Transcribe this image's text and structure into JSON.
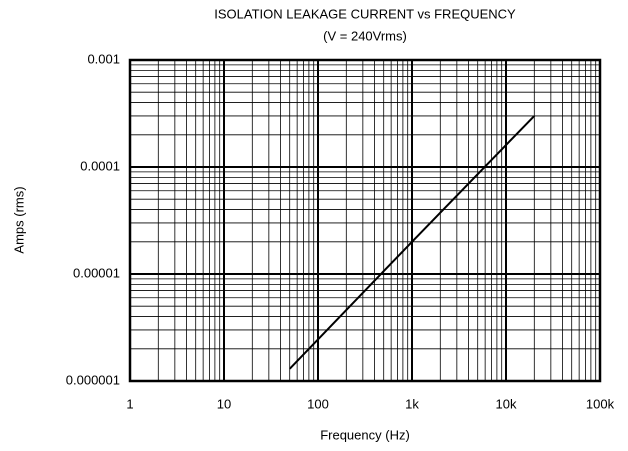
{
  "chart_data": {
    "type": "line",
    "title": "ISOLATION LEAKAGE CURRENT vs FREQUENCY",
    "subtitle": "(V = 240Vrms)",
    "xlabel": "Frequency (Hz)",
    "ylabel": "Amps (rms)",
    "x": [
      50,
      1000,
      20000
    ],
    "series": [
      {
        "color": "#000000",
        "values": [
          1.3e-06,
          2e-05,
          0.0003
        ]
      }
    ],
    "xscale": "log",
    "yscale": "log",
    "xlim": [
      1,
      100000
    ],
    "ylim": [
      1e-06,
      0.001
    ],
    "xticks": [
      1,
      10,
      100,
      {
        "value": 1000,
        "label": "1k"
      },
      {
        "value": 10000,
        "label": "10k"
      },
      {
        "value": 100000,
        "label": "100k"
      }
    ],
    "yticks": [
      1e-06,
      1e-05,
      0.0001,
      0.001
    ],
    "grid": true
  }
}
